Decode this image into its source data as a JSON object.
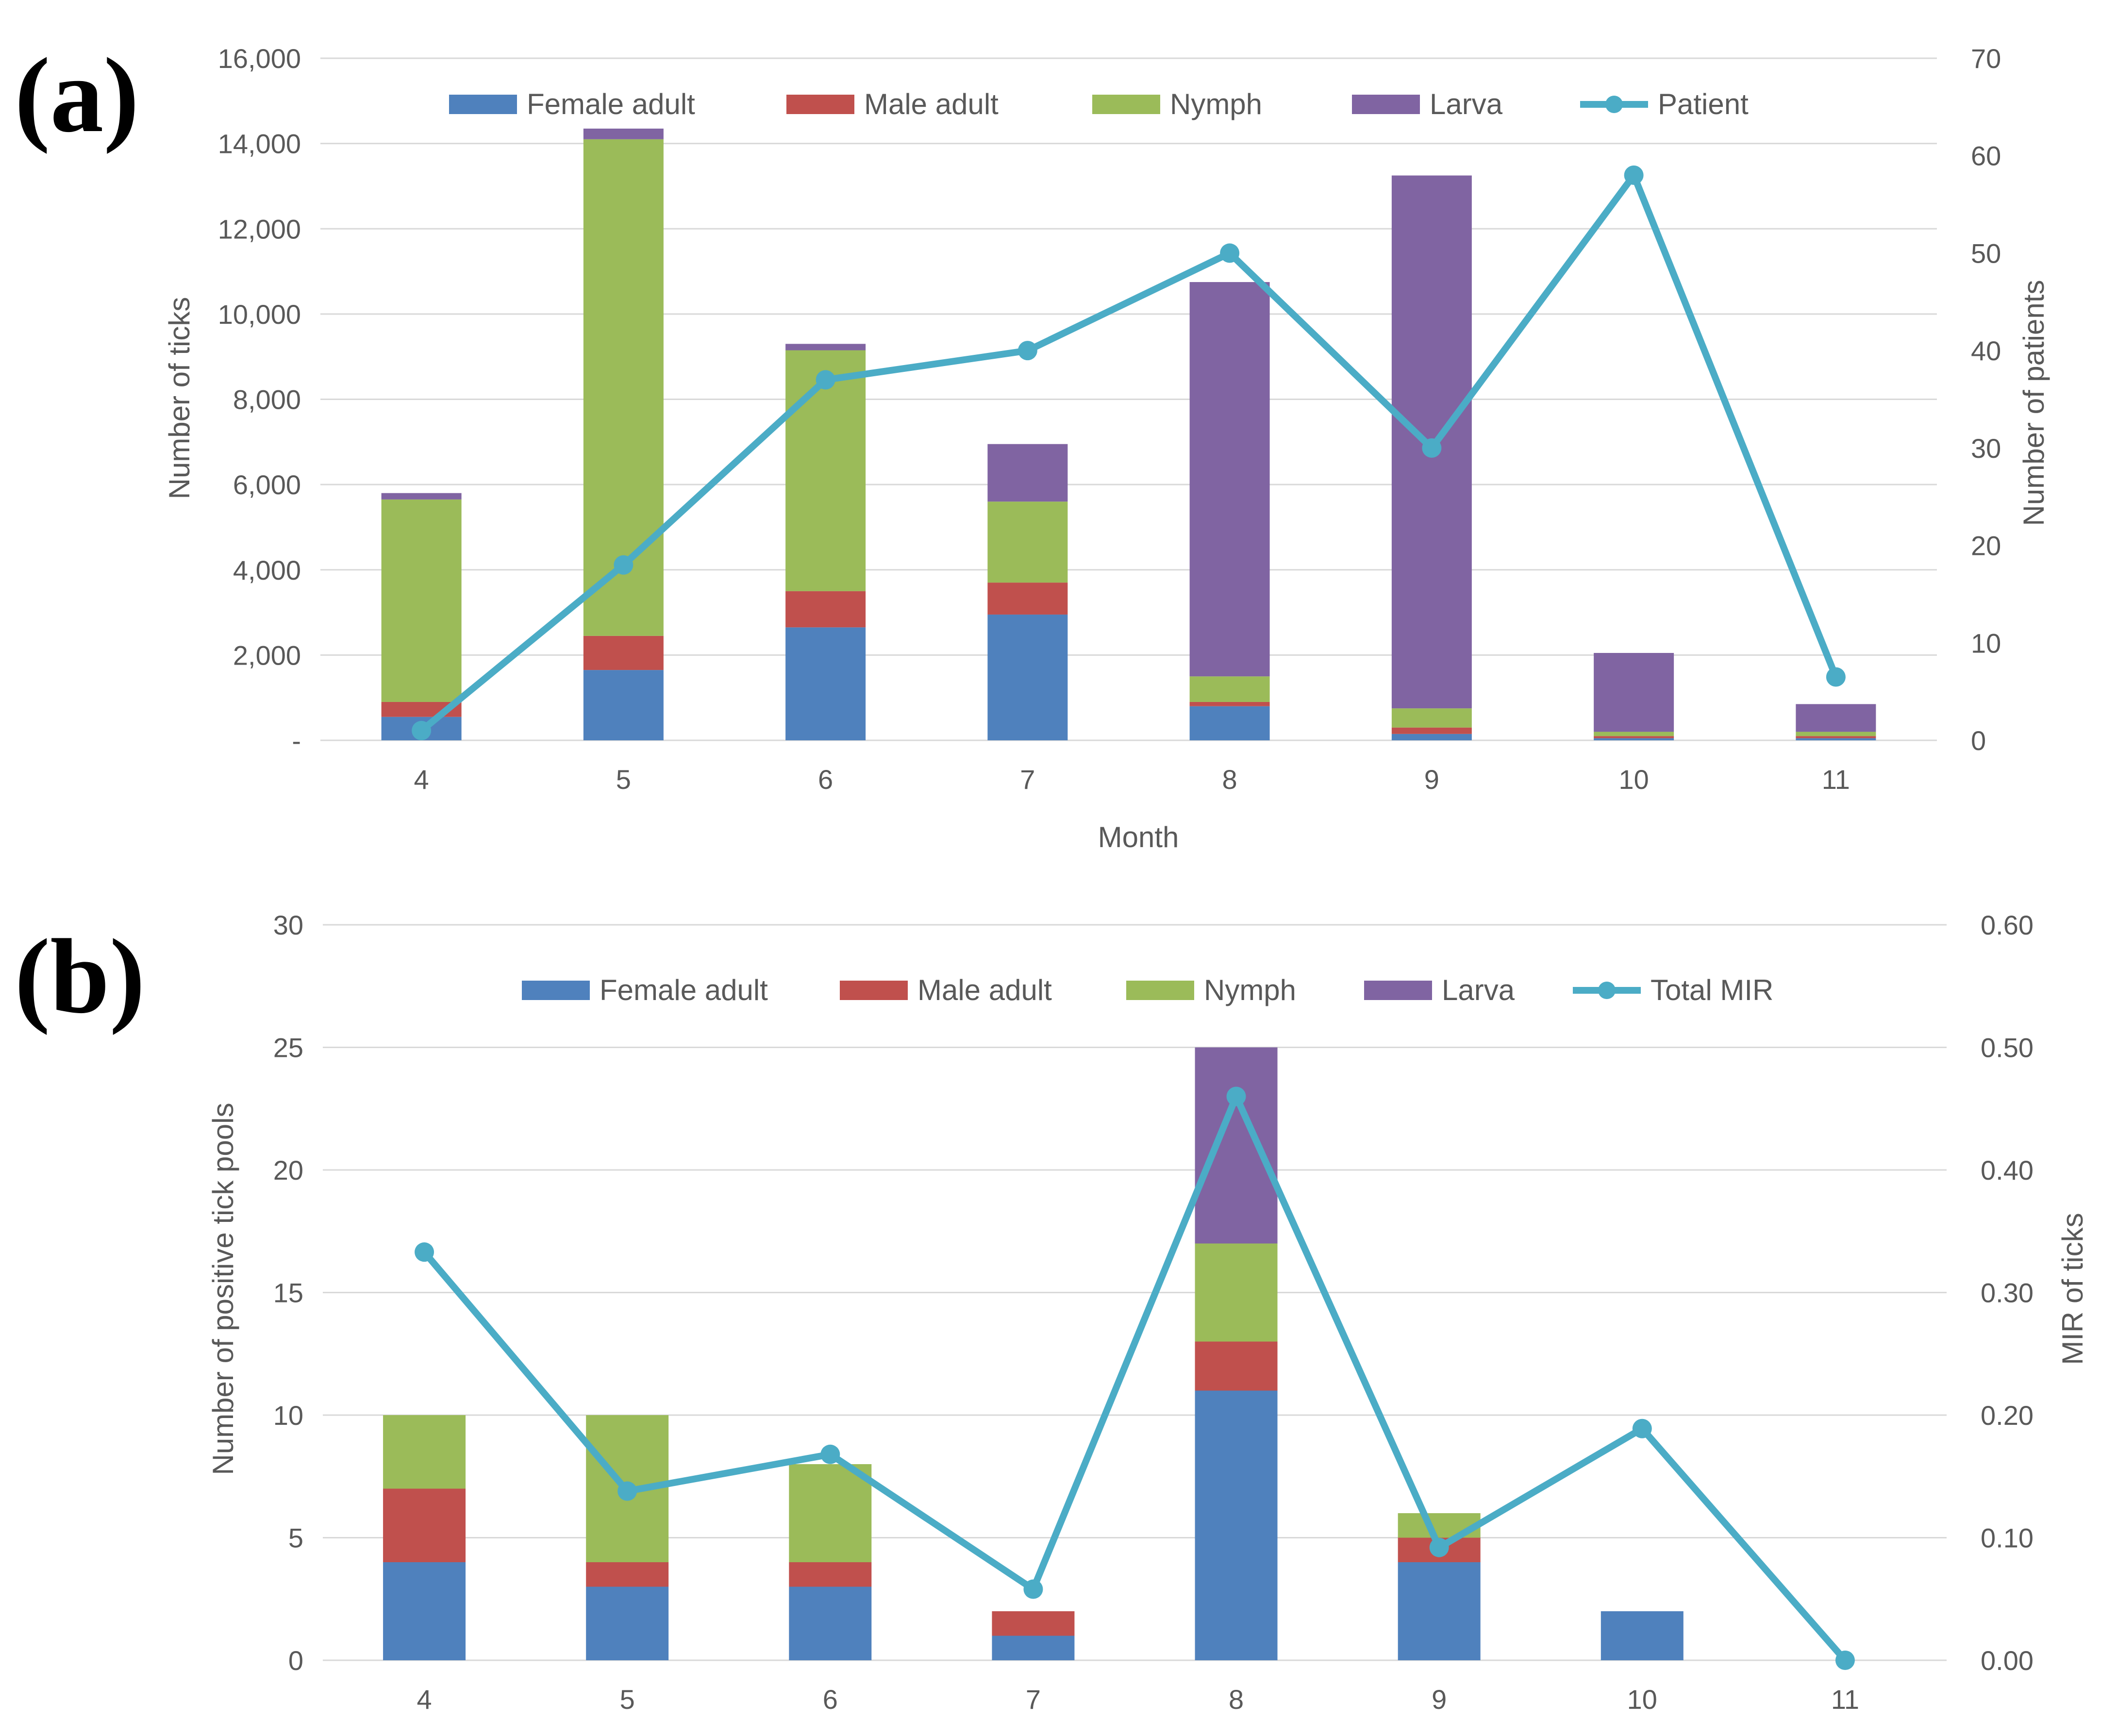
{
  "colors": {
    "female_adult": "#4F81BD",
    "male_adult": "#C0504D",
    "nymph": "#9BBB59",
    "larva": "#8064A2",
    "line": "#4BACC6"
  },
  "chart_data": [
    {
      "panel_label": "(a)",
      "type": "bar",
      "stacked": true,
      "categories": [
        "4",
        "5",
        "6",
        "7",
        "8",
        "9",
        "10",
        "11"
      ],
      "series": [
        {
          "name": "Female adult",
          "values": [
            550,
            1650,
            2650,
            2950,
            800,
            150,
            50,
            50
          ]
        },
        {
          "name": "Male adult",
          "values": [
            350,
            800,
            850,
            750,
            100,
            150,
            50,
            50
          ]
        },
        {
          "name": "Nymph",
          "values": [
            4750,
            11650,
            5650,
            1900,
            600,
            450,
            100,
            100
          ]
        },
        {
          "name": "Larva",
          "values": [
            150,
            250,
            150,
            1350,
            9250,
            12500,
            1850,
            650
          ]
        }
      ],
      "line_series": {
        "name": "Patient",
        "axis": "right",
        "values": [
          1,
          18,
          37,
          40,
          50,
          30,
          58,
          6.5
        ]
      },
      "xlabel": "Month",
      "ylabel": "Number of ticks",
      "y2label": "Number of patients",
      "ylim": [
        0,
        16000
      ],
      "y2lim": [
        0,
        70
      ],
      "yticks": [
        "-",
        "2,000",
        "4,000",
        "6,000",
        "8,000",
        "10,000",
        "12,000",
        "14,000",
        "16,000"
      ],
      "y2ticks": [
        "0",
        "10",
        "20",
        "30",
        "40",
        "50",
        "60",
        "70"
      ],
      "grid": true,
      "legend_position": "top"
    },
    {
      "panel_label": "(b)",
      "type": "bar",
      "stacked": true,
      "categories": [
        "4",
        "5",
        "6",
        "7",
        "8",
        "9",
        "10",
        "11"
      ],
      "series": [
        {
          "name": "Female adult",
          "values": [
            4,
            3,
            3,
            1,
            11,
            4,
            2,
            0
          ]
        },
        {
          "name": "Male adult",
          "values": [
            3,
            1,
            1,
            1,
            2,
            1,
            0,
            0
          ]
        },
        {
          "name": "Nymph",
          "values": [
            3,
            6,
            4,
            0,
            4,
            1,
            0,
            0
          ]
        },
        {
          "name": "Larva",
          "values": [
            0,
            0,
            0,
            0,
            8,
            0,
            0,
            0
          ]
        }
      ],
      "line_series": {
        "name": "Total MIR",
        "axis": "right",
        "values": [
          0.333,
          0.138,
          0.168,
          0.058,
          0.46,
          0.092,
          0.189,
          0.0
        ]
      },
      "xlabel": "",
      "ylabel": "Number of positive tick pools",
      "y2label": "MIR of ticks",
      "ylim": [
        0,
        30
      ],
      "y2lim": [
        0,
        0.6
      ],
      "yticks": [
        "0",
        "5",
        "10",
        "15",
        "20",
        "25",
        "30"
      ],
      "y2ticks": [
        "0.00",
        "0.10",
        "0.20",
        "0.30",
        "0.40",
        "0.50",
        "0.60"
      ],
      "grid": true,
      "legend_position": "top"
    }
  ]
}
